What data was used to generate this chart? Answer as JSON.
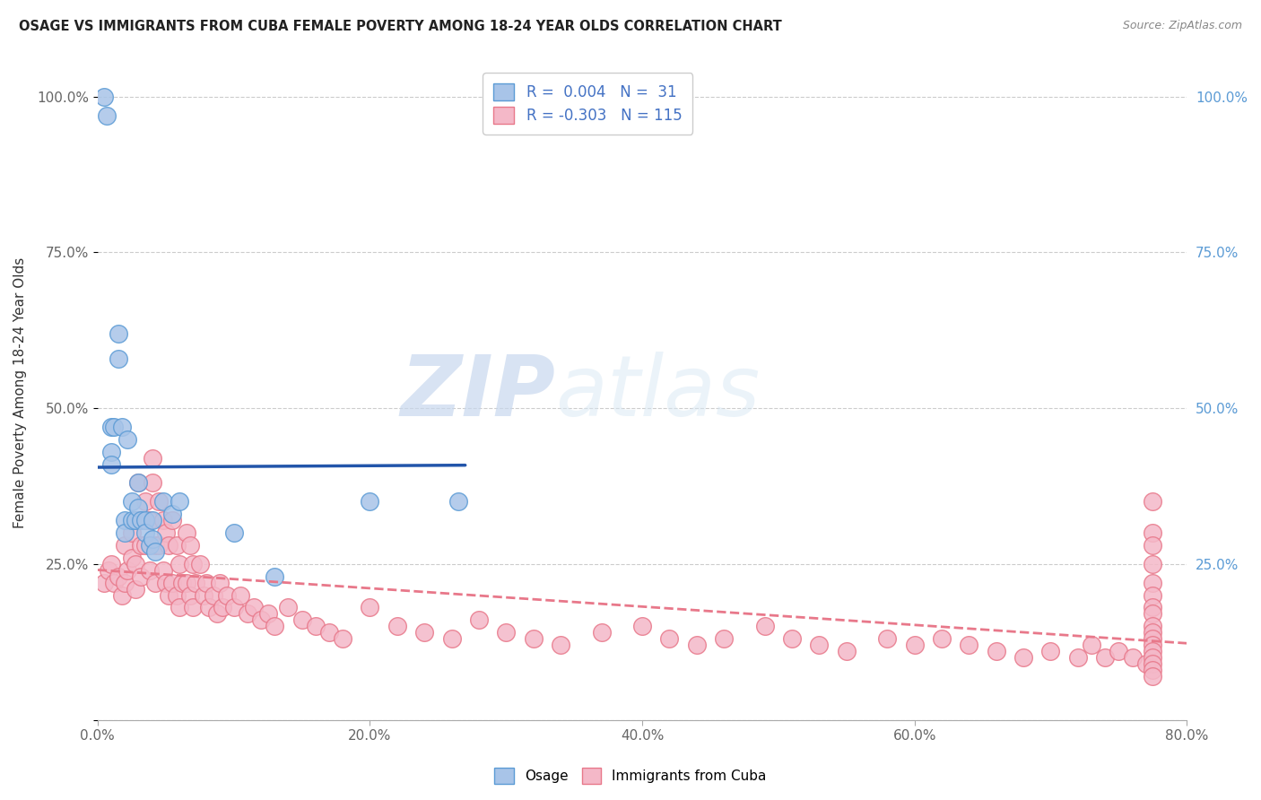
{
  "title": "OSAGE VS IMMIGRANTS FROM CUBA FEMALE POVERTY AMONG 18-24 YEAR OLDS CORRELATION CHART",
  "source": "Source: ZipAtlas.com",
  "ylabel": "Female Poverty Among 18-24 Year Olds",
  "xlim": [
    0.0,
    0.8
  ],
  "ylim": [
    0.0,
    1.05
  ],
  "xticks": [
    0.0,
    0.2,
    0.4,
    0.6,
    0.8
  ],
  "xtick_labels": [
    "0.0%",
    "20.0%",
    "40.0%",
    "60.0%",
    "80.0%"
  ],
  "yticks": [
    0.0,
    0.25,
    0.5,
    0.75,
    1.0
  ],
  "ytick_labels_left": [
    "",
    "25.0%",
    "50.0%",
    "75.0%",
    "100.0%"
  ],
  "ytick_labels_right": [
    "",
    "25.0%",
    "50.0%",
    "75.0%",
    "100.0%"
  ],
  "osage_color": "#a8c4e8",
  "cuba_color": "#f4b8c8",
  "osage_edge_color": "#5b9bd5",
  "cuba_edge_color": "#e8788a",
  "osage_line_color": "#2255aa",
  "cuba_line_color": "#e8788a",
  "legend_osage_R": "0.004",
  "legend_osage_N": "31",
  "legend_cuba_R": "-0.303",
  "legend_cuba_N": "115",
  "watermark_zip": "ZIP",
  "watermark_atlas": "atlas",
  "background_color": "#ffffff",
  "grid_color": "#cccccc",
  "osage_x": [
    0.005,
    0.007,
    0.01,
    0.01,
    0.01,
    0.012,
    0.015,
    0.015,
    0.018,
    0.02,
    0.02,
    0.022,
    0.025,
    0.025,
    0.028,
    0.03,
    0.03,
    0.032,
    0.035,
    0.035,
    0.038,
    0.04,
    0.04,
    0.042,
    0.048,
    0.055,
    0.06,
    0.1,
    0.13,
    0.2,
    0.265
  ],
  "osage_y": [
    1.0,
    0.97,
    0.47,
    0.43,
    0.41,
    0.47,
    0.62,
    0.58,
    0.47,
    0.32,
    0.3,
    0.45,
    0.35,
    0.32,
    0.32,
    0.38,
    0.34,
    0.32,
    0.32,
    0.3,
    0.28,
    0.32,
    0.29,
    0.27,
    0.35,
    0.33,
    0.35,
    0.3,
    0.23,
    0.35,
    0.35
  ],
  "cuba_x": [
    0.005,
    0.008,
    0.01,
    0.012,
    0.015,
    0.018,
    0.02,
    0.02,
    0.022,
    0.025,
    0.025,
    0.028,
    0.028,
    0.03,
    0.03,
    0.032,
    0.032,
    0.035,
    0.035,
    0.038,
    0.038,
    0.04,
    0.04,
    0.042,
    0.042,
    0.045,
    0.045,
    0.048,
    0.048,
    0.05,
    0.05,
    0.052,
    0.052,
    0.055,
    0.055,
    0.058,
    0.058,
    0.06,
    0.06,
    0.062,
    0.065,
    0.065,
    0.068,
    0.068,
    0.07,
    0.07,
    0.072,
    0.075,
    0.078,
    0.08,
    0.082,
    0.085,
    0.088,
    0.09,
    0.092,
    0.095,
    0.1,
    0.105,
    0.11,
    0.115,
    0.12,
    0.125,
    0.13,
    0.14,
    0.15,
    0.16,
    0.17,
    0.18,
    0.2,
    0.22,
    0.24,
    0.26,
    0.28,
    0.3,
    0.32,
    0.34,
    0.37,
    0.4,
    0.42,
    0.44,
    0.46,
    0.49,
    0.51,
    0.53,
    0.55,
    0.58,
    0.6,
    0.62,
    0.64,
    0.66,
    0.68,
    0.7,
    0.72,
    0.73,
    0.74,
    0.75,
    0.76,
    0.77,
    0.775,
    0.775,
    0.775,
    0.775,
    0.775,
    0.775,
    0.775,
    0.775,
    0.775,
    0.775,
    0.775,
    0.775,
    0.775,
    0.775,
    0.775,
    0.775,
    0.775
  ],
  "cuba_y": [
    0.22,
    0.24,
    0.25,
    0.22,
    0.23,
    0.2,
    0.28,
    0.22,
    0.24,
    0.3,
    0.26,
    0.25,
    0.21,
    0.38,
    0.32,
    0.28,
    0.23,
    0.35,
    0.28,
    0.32,
    0.24,
    0.42,
    0.38,
    0.28,
    0.22,
    0.35,
    0.28,
    0.32,
    0.24,
    0.3,
    0.22,
    0.28,
    0.2,
    0.32,
    0.22,
    0.28,
    0.2,
    0.25,
    0.18,
    0.22,
    0.3,
    0.22,
    0.28,
    0.2,
    0.25,
    0.18,
    0.22,
    0.25,
    0.2,
    0.22,
    0.18,
    0.2,
    0.17,
    0.22,
    0.18,
    0.2,
    0.18,
    0.2,
    0.17,
    0.18,
    0.16,
    0.17,
    0.15,
    0.18,
    0.16,
    0.15,
    0.14,
    0.13,
    0.18,
    0.15,
    0.14,
    0.13,
    0.16,
    0.14,
    0.13,
    0.12,
    0.14,
    0.15,
    0.13,
    0.12,
    0.13,
    0.15,
    0.13,
    0.12,
    0.11,
    0.13,
    0.12,
    0.13,
    0.12,
    0.11,
    0.1,
    0.11,
    0.1,
    0.12,
    0.1,
    0.11,
    0.1,
    0.09,
    0.35,
    0.3,
    0.28,
    0.25,
    0.22,
    0.2,
    0.18,
    0.17,
    0.15,
    0.14,
    0.13,
    0.12,
    0.11,
    0.1,
    0.09,
    0.08,
    0.07
  ]
}
